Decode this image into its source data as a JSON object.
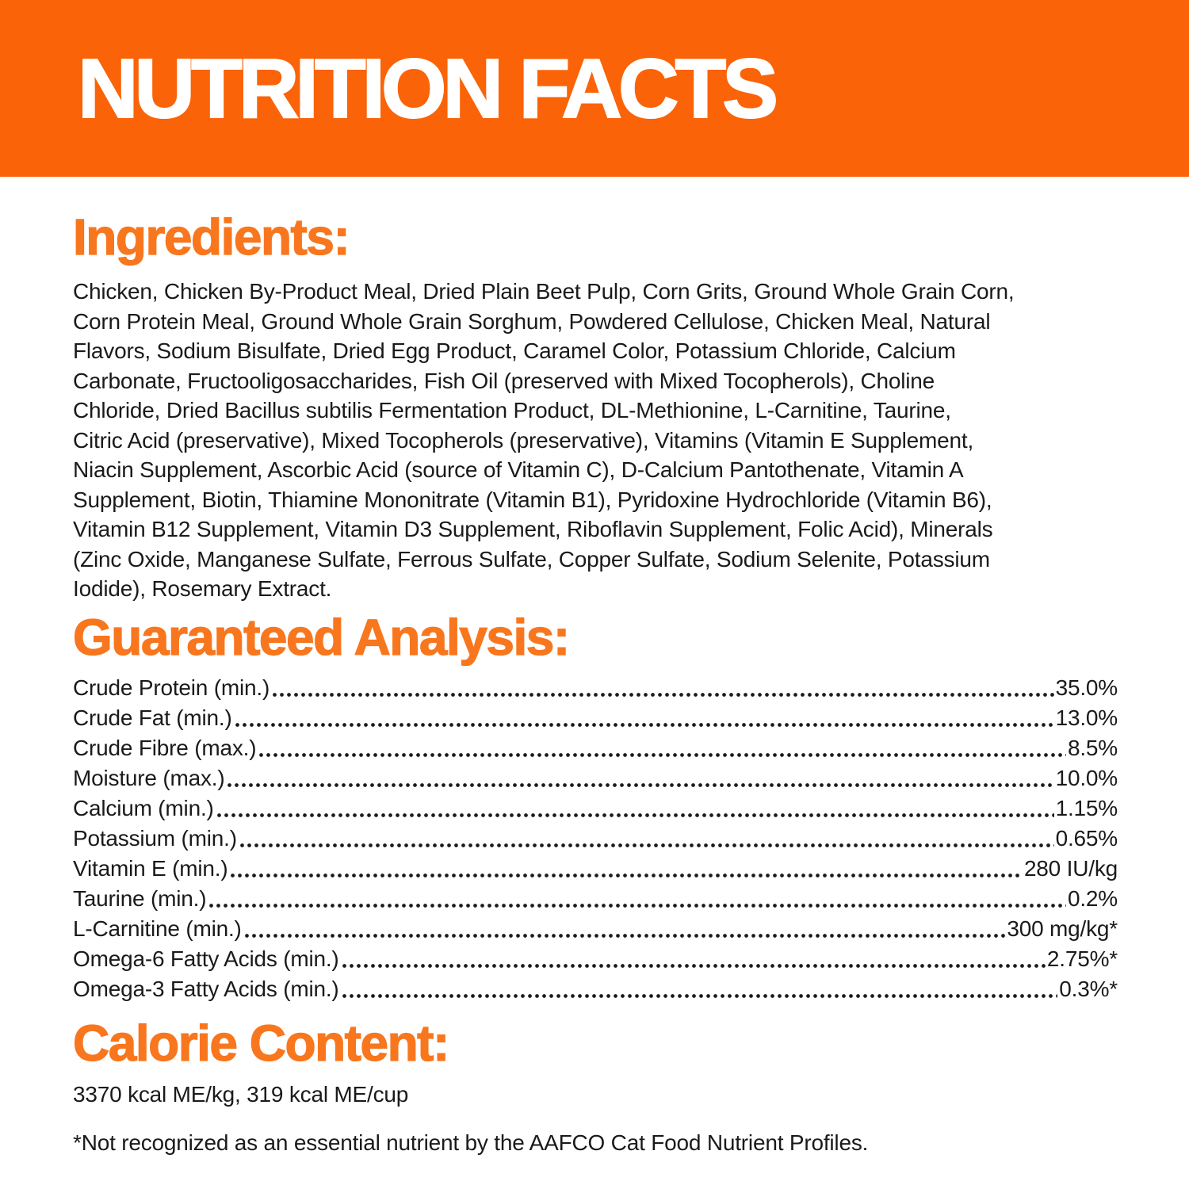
{
  "colors": {
    "banner-bg": "#FA6308",
    "heading": "#F8771E",
    "text": "#1A1A1A",
    "page-bg": "#FFFFFF",
    "banner-text": "#FFFFFF"
  },
  "header": {
    "title": "NUTRITION FACTS"
  },
  "ingredients": {
    "heading": "Ingredients:",
    "lines": [
      "Chicken, Chicken By-Product Meal, Dried Plain Beet Pulp, Corn Grits, Ground Whole Grain Corn,",
      "Corn Protein Meal, Ground Whole Grain Sorghum, Powdered Cellulose, Chicken Meal, Natural",
      "Flavors, Sodium Bisulfate, Dried Egg Product, Caramel Color, Potassium Chloride, Calcium",
      "Carbonate, Fructooligosaccharides, Fish Oil (preserved with Mixed Tocopherols), Choline",
      "Chloride, Dried Bacillus subtilis Fermentation Product, DL-Methionine, L-Carnitine, Taurine,",
      "Citric Acid (preservative), Mixed Tocopherols (preservative), Vitamins (Vitamin E Supplement,",
      "Niacin Supplement, Ascorbic Acid (source of Vitamin C), D-Calcium Pantothenate, Vitamin A",
      "Supplement, Biotin, Thiamine Mononitrate (Vitamin B1), Pyridoxine Hydrochloride (Vitamin B6),",
      "Vitamin B12 Supplement, Vitamin D3 Supplement, Riboflavin Supplement, Folic Acid), Minerals",
      "(Zinc Oxide, Manganese Sulfate, Ferrous Sulfate, Copper Sulfate, Sodium Selenite, Potassium",
      "Iodide), Rosemary Extract."
    ]
  },
  "guaranteed_analysis": {
    "heading": "Guaranteed Analysis:",
    "rows": [
      {
        "label": "Crude Protein (min.)",
        "value": "35.0%"
      },
      {
        "label": "Crude Fat (min.)",
        "value": "13.0%"
      },
      {
        "label": "Crude Fibre (max.)",
        "value": "8.5%"
      },
      {
        "label": "Moisture (max.)",
        "value": "10.0%"
      },
      {
        "label": "Calcium (min.)",
        "value": "1.15%"
      },
      {
        "label": "Potassium (min.)",
        "value": "0.65%"
      },
      {
        "label": "Vitamin E (min.)",
        "value": "280 IU/kg"
      },
      {
        "label": "Taurine (min.)",
        "value": "0.2%"
      },
      {
        "label": "L-Carnitine (min.)",
        "value": "300 mg/kg*"
      },
      {
        "label": "Omega-6 Fatty Acids (min.)",
        "value": "2.75%*"
      },
      {
        "label": "Omega-3 Fatty Acids (min.)",
        "value": "0.3%*"
      }
    ]
  },
  "calorie_content": {
    "heading": "Calorie Content:",
    "text": "3370 kcal ME/kg, 319 kcal ME/cup"
  },
  "footnote": "*Not recognized as an essential nutrient by the AAFCO Cat Food Nutrient Profiles."
}
